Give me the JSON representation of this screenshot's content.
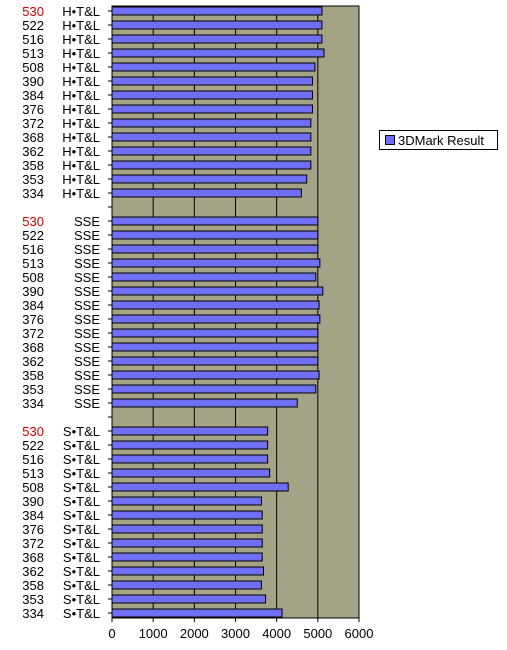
{
  "chart_data": {
    "type": "bar",
    "orientation": "horizontal",
    "legend": {
      "position": "right",
      "entries": [
        "3DMark Result"
      ]
    },
    "series": [
      {
        "name": "3DMark Result",
        "color": "#6f6ff2"
      }
    ],
    "plot_background": "#a4a385",
    "highlight_color": "#cc0000",
    "highlight_model": "530",
    "grid": true,
    "xlim": [
      0,
      6000
    ],
    "xticks": [
      "0",
      "1000",
      "2000",
      "3000",
      "4000",
      "5000",
      "6000"
    ],
    "groups": [
      {
        "mode": "H•T&L",
        "categories": [
          {
            "model": "530",
            "value": 5100
          },
          {
            "model": "522",
            "value": 5100
          },
          {
            "model": "516",
            "value": 5100
          },
          {
            "model": "513",
            "value": 5150
          },
          {
            "model": "508",
            "value": 4930
          },
          {
            "model": "390",
            "value": 4870
          },
          {
            "model": "384",
            "value": 4870
          },
          {
            "model": "376",
            "value": 4870
          },
          {
            "model": "372",
            "value": 4830
          },
          {
            "model": "368",
            "value": 4830
          },
          {
            "model": "362",
            "value": 4830
          },
          {
            "model": "358",
            "value": 4830
          },
          {
            "model": "353",
            "value": 4730
          },
          {
            "model": "334",
            "value": 4600
          }
        ]
      },
      {
        "mode": "SSE",
        "categories": [
          {
            "model": "530",
            "value": 5000
          },
          {
            "model": "522",
            "value": 5000
          },
          {
            "model": "516",
            "value": 5000
          },
          {
            "model": "513",
            "value": 5050
          },
          {
            "model": "508",
            "value": 4950
          },
          {
            "model": "390",
            "value": 5120
          },
          {
            "model": "384",
            "value": 5030
          },
          {
            "model": "376",
            "value": 5050
          },
          {
            "model": "372",
            "value": 5000
          },
          {
            "model": "368",
            "value": 5000
          },
          {
            "model": "362",
            "value": 5000
          },
          {
            "model": "358",
            "value": 5030
          },
          {
            "model": "353",
            "value": 4950
          },
          {
            "model": "334",
            "value": 4500
          }
        ]
      },
      {
        "mode": "S•T&L",
        "categories": [
          {
            "model": "530",
            "value": 3780
          },
          {
            "model": "522",
            "value": 3780
          },
          {
            "model": "516",
            "value": 3780
          },
          {
            "model": "513",
            "value": 3830
          },
          {
            "model": "508",
            "value": 4280
          },
          {
            "model": "390",
            "value": 3630
          },
          {
            "model": "384",
            "value": 3650
          },
          {
            "model": "376",
            "value": 3650
          },
          {
            "model": "372",
            "value": 3650
          },
          {
            "model": "368",
            "value": 3650
          },
          {
            "model": "362",
            "value": 3680
          },
          {
            "model": "358",
            "value": 3630
          },
          {
            "model": "353",
            "value": 3730
          },
          {
            "model": "334",
            "value": 4130
          }
        ]
      }
    ]
  }
}
